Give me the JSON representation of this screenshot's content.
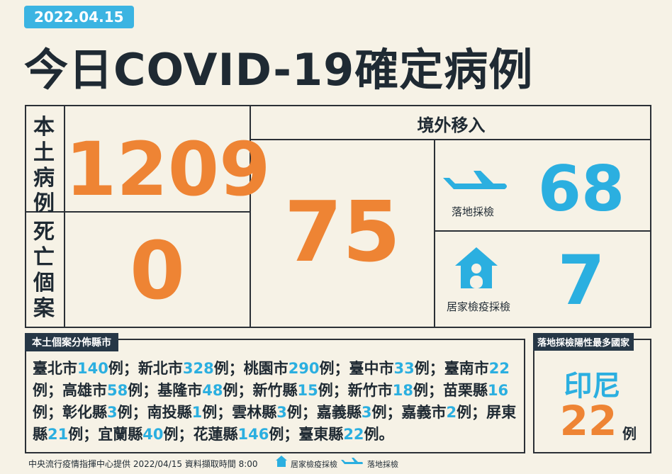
{
  "header": {
    "date": "2022.04.15",
    "title": "今日COVID-19確定病例"
  },
  "local": {
    "label": "本土病例",
    "count": 1209
  },
  "deaths": {
    "label": "死亡個案",
    "count": 0
  },
  "imported": {
    "label": "境外移入",
    "count": 75,
    "airport": {
      "label": "落地採檢",
      "count": 68
    },
    "home": {
      "label": "居家檢疫採檢",
      "count": 7
    }
  },
  "distribution": {
    "title": "本土個案分佈縣市",
    "unit": "例",
    "separator": "；",
    "end": "。",
    "items": [
      {
        "name": "臺北市",
        "count": 140
      },
      {
        "name": "新北市",
        "count": 328
      },
      {
        "name": "桃園市",
        "count": 290
      },
      {
        "name": "臺中市",
        "count": 33
      },
      {
        "name": "臺南市",
        "count": 22
      },
      {
        "name": "高雄市",
        "count": 58
      },
      {
        "name": "基隆市",
        "count": 48
      },
      {
        "name": "新竹縣",
        "count": 15
      },
      {
        "name": "新竹市",
        "count": 18
      },
      {
        "name": "苗栗縣",
        "count": 16
      },
      {
        "name": "彰化縣",
        "count": 3
      },
      {
        "name": "南投縣",
        "count": 1
      },
      {
        "name": "雲林縣",
        "count": 3
      },
      {
        "name": "嘉義縣",
        "count": 3
      },
      {
        "name": "嘉義市",
        "count": 2
      },
      {
        "name": "屏東縣",
        "count": 21
      },
      {
        "name": "宜蘭縣",
        "count": 40
      },
      {
        "name": "花蓮縣",
        "count": 146
      },
      {
        "name": "臺東縣",
        "count": 22
      }
    ]
  },
  "top_country": {
    "title": "落地採檢陽性最多國家",
    "country": "印尼",
    "count": 22,
    "unit": "例"
  },
  "footer": {
    "source": "中央流行疫情指揮中心提供 2022/04/15 資料擷取時間 8:00",
    "legend_home": "居家檢疫採檢",
    "legend_airport": "落地採檢"
  }
}
